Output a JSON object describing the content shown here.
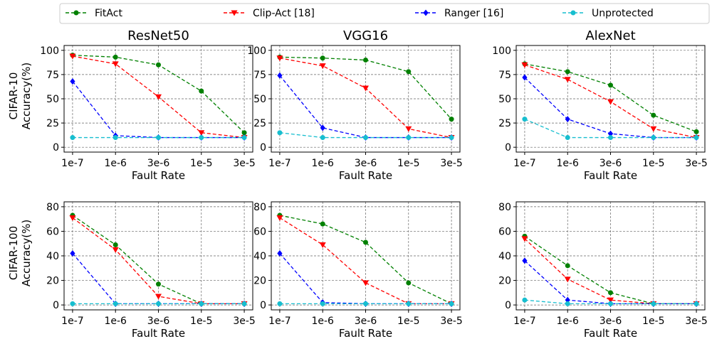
{
  "chart_data": {
    "type": "line",
    "legend": {
      "placement": "top",
      "entries": [
        {
          "label": "FitAct",
          "color": "#008000",
          "marker": "circle"
        },
        {
          "label": "Clip-Act [18]",
          "color": "#ff0000",
          "marker": "triangle-down"
        },
        {
          "label": "Ranger [16]",
          "color": "#0000ff",
          "marker": "diamond"
        },
        {
          "label": "Unprotected",
          "color": "#17becf",
          "marker": "circle"
        }
      ]
    },
    "grid": true,
    "x_tick_labels": [
      "1e-7",
      "1e-6",
      "3e-6",
      "1e-5",
      "3e-5"
    ],
    "xlabel": "Fault Rate",
    "row_labels": [
      "CIFAR-10\nAccuracy(%)",
      "CIFAR-100\nAccuracy(%)"
    ],
    "column_titles": [
      "ResNet50",
      "VGG16",
      "AlexNet"
    ],
    "rows": [
      {
        "ylim": [
          0,
          100
        ],
        "yticks": [
          0,
          25,
          50,
          75,
          100
        ],
        "panels": [
          {
            "series": [
              [
                95,
                93,
                85,
                58,
                15
              ],
              [
                94,
                86,
                52,
                15,
                10
              ],
              [
                68,
                12,
                10,
                10,
                10
              ],
              [
                10,
                10,
                10,
                10,
                10
              ]
            ]
          },
          {
            "series": [
              [
                93,
                92,
                90,
                78,
                29
              ],
              [
                92,
                84,
                61,
                19,
                10
              ],
              [
                74,
                20,
                10,
                10,
                10
              ],
              [
                15,
                10,
                10,
                10,
                10
              ]
            ]
          },
          {
            "series": [
              [
                86,
                78,
                64,
                33,
                16
              ],
              [
                85,
                70,
                47,
                19,
                10
              ],
              [
                72,
                29,
                14,
                10,
                10
              ],
              [
                29,
                10,
                10,
                10,
                10
              ]
            ]
          }
        ]
      },
      {
        "ylim": [
          0,
          80
        ],
        "yticks": [
          0,
          20,
          40,
          60,
          80
        ],
        "panels": [
          {
            "series": [
              [
                73,
                49,
                17,
                1,
                1
              ],
              [
                71,
                45,
                7,
                1,
                1
              ],
              [
                42,
                1,
                1,
                1,
                1
              ],
              [
                1,
                1,
                1,
                1,
                1
              ]
            ]
          },
          {
            "series": [
              [
                73,
                66,
                51,
                18,
                1
              ],
              [
                71,
                49,
                18,
                1,
                1
              ],
              [
                42,
                2,
                1,
                1,
                1
              ],
              [
                1,
                1,
                1,
                1,
                1
              ]
            ]
          },
          {
            "series": [
              [
                56,
                32,
                10,
                1,
                1
              ],
              [
                54,
                21,
                4,
                1,
                1
              ],
              [
                36,
                4,
                1,
                1,
                1
              ],
              [
                4,
                1,
                1,
                1,
                1
              ]
            ]
          }
        ]
      }
    ]
  }
}
